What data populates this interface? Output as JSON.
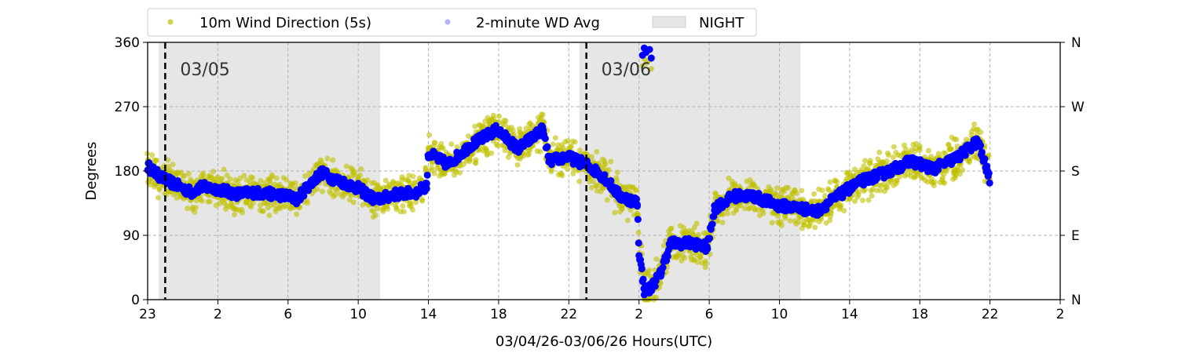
{
  "chart_data": {
    "type": "scatter",
    "xlabel": "03/04/26-03/06/26  Hours(UTC)",
    "ylabel": "Degrees",
    "xlim": [
      0,
      52
    ],
    "ylim": [
      0,
      360
    ],
    "x_tick_labels": [
      "23",
      "2",
      "6",
      "10",
      "14",
      "18",
      "22",
      "2",
      "6",
      "10",
      "14",
      "18",
      "22",
      "2"
    ],
    "y_ticks": [
      0,
      90,
      180,
      270,
      360
    ],
    "y_tick_labels": [
      "0",
      "90",
      "180",
      "270",
      "360"
    ],
    "right_tick_labels": [
      "N",
      "E",
      "S",
      "W",
      "N"
    ],
    "grid": true,
    "legend": {
      "placement": "top",
      "entries": [
        "10m Wind Direction (5s)",
        "2-minute WD Avg",
        "NIGHT"
      ]
    },
    "night_periods": [
      [
        0.63,
        13.25
      ],
      [
        24.6,
        37.2
      ]
    ],
    "day_markers": [
      {
        "x": 1,
        "label": "03/05"
      },
      {
        "x": 25,
        "label": "03/06"
      }
    ],
    "colors": {
      "wd": "#bfbf00",
      "avg": "#0000ff",
      "night": "#e6e6e6"
    },
    "wd_spread_deg": 22,
    "avg_keypoints": [
      [
        0,
        187
      ],
      [
        0.5,
        176
      ],
      [
        1,
        168
      ],
      [
        2,
        156
      ],
      [
        2.5,
        150
      ],
      [
        3,
        158
      ],
      [
        4,
        155
      ],
      [
        5,
        148
      ],
      [
        6,
        150
      ],
      [
        7,
        148
      ],
      [
        8,
        145
      ],
      [
        8.5,
        140
      ],
      [
        9,
        155
      ],
      [
        9.9,
        178
      ],
      [
        10.5,
        170
      ],
      [
        12,
        156
      ],
      [
        13,
        139
      ],
      [
        14,
        147
      ],
      [
        15.3,
        150
      ],
      [
        15.9,
        160
      ],
      [
        16,
        205
      ],
      [
        17.1,
        189
      ],
      [
        18.4,
        216
      ],
      [
        19.9,
        238
      ],
      [
        21.1,
        211
      ],
      [
        22.5,
        238
      ],
      [
        22.9,
        194
      ],
      [
        23.9,
        200
      ],
      [
        25,
        189
      ],
      [
        26,
        172
      ],
      [
        26.9,
        145
      ],
      [
        27.9,
        136
      ],
      [
        28,
        68
      ],
      [
        28.3,
        13
      ],
      [
        28.6,
        15
      ],
      [
        29.2,
        35
      ],
      [
        29.8,
        79
      ],
      [
        31,
        79
      ],
      [
        31.9,
        73
      ],
      [
        32.3,
        128
      ],
      [
        33.4,
        145
      ],
      [
        34.5,
        145
      ],
      [
        35.9,
        132
      ],
      [
        37.2,
        128
      ],
      [
        38.1,
        123
      ],
      [
        39,
        139
      ],
      [
        40,
        156
      ],
      [
        40.8,
        167
      ],
      [
        42.1,
        178
      ],
      [
        43.5,
        194
      ],
      [
        44.8,
        183
      ],
      [
        46.2,
        200
      ],
      [
        47.3,
        222
      ],
      [
        48,
        167
      ]
    ],
    "north_cluster": [
      [
        28.2,
        342
      ],
      [
        28.3,
        352
      ],
      [
        28.4,
        346
      ],
      [
        28.6,
        350
      ],
      [
        28.7,
        338
      ]
    ]
  }
}
